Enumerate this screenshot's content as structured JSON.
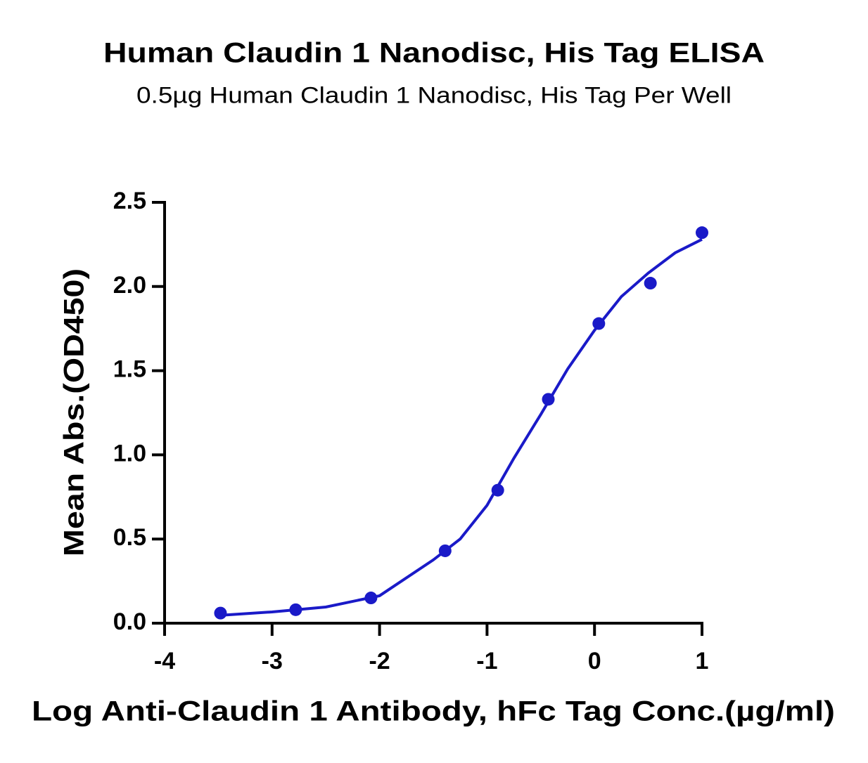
{
  "chart_data": {
    "type": "scatter",
    "title": "Human Claudin 1 Nanodisc, His Tag ELISA",
    "subtitle": "0.5µg Human Claudin 1 Nanodisc, His Tag Per Well",
    "x_label": "Log Anti-Claudin 1 Antibody, hFc Tag Conc.(µg/ml)",
    "y_label": "Mean Abs.(OD450)",
    "xlim": [
      -4,
      1
    ],
    "xticks": [
      -4,
      -3,
      -2,
      -1,
      0,
      1
    ],
    "ylim": [
      0,
      2.5
    ],
    "yticks": [
      {
        "value": 0,
        "label": "0.0"
      },
      {
        "value": 0.5,
        "label": "0.5"
      },
      {
        "value": 1,
        "label": "1.0"
      },
      {
        "value": 1.5,
        "label": "1.5"
      },
      {
        "value": 2,
        "label": "2.0"
      },
      {
        "value": 2.5,
        "label": "2.5"
      }
    ],
    "color": "#1a1ac8",
    "x": [
      -3.48,
      -2.78,
      -2.08,
      -1.39,
      -0.9,
      -0.43,
      0.04,
      0.52,
      1.0
    ],
    "values": [
      0.06,
      0.08,
      0.15,
      0.43,
      0.79,
      1.33,
      1.78,
      2.02,
      2.32
    ],
    "fit": {
      "x": [
        -3.5,
        -3,
        -2.5,
        -2,
        -1.5,
        -1.25,
        -1,
        -0.75,
        -0.5,
        -0.25,
        0,
        0.25,
        0.5,
        0.75,
        1
      ],
      "values": [
        0.046,
        0.067,
        0.096,
        0.163,
        0.376,
        0.5,
        0.7,
        0.98,
        1.24,
        1.51,
        1.74,
        1.94,
        2.08,
        2.2,
        2.28
      ]
    }
  }
}
